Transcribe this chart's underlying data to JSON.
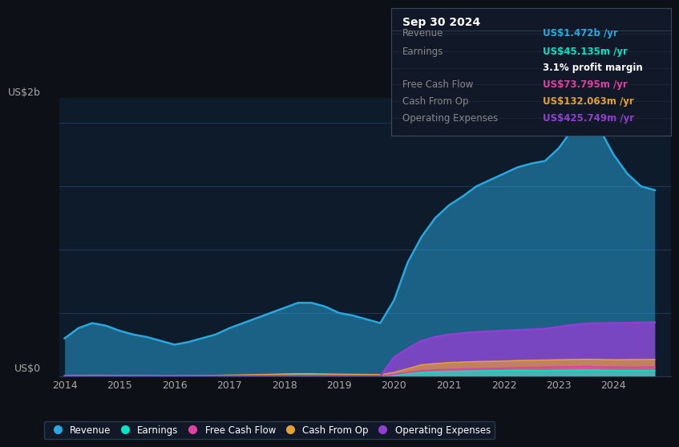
{
  "bg_color": "#0d1117",
  "plot_bg_color": "#0d1b2a",
  "grid_color": "#1e3050",
  "title_box_color": "#111827",
  "years": [
    2014,
    2014.25,
    2014.5,
    2014.75,
    2015,
    2015.25,
    2015.5,
    2015.75,
    2016,
    2016.25,
    2016.5,
    2016.75,
    2017,
    2017.25,
    2017.5,
    2017.75,
    2018,
    2018.25,
    2018.5,
    2018.75,
    2019,
    2019.25,
    2019.5,
    2019.75,
    2020,
    2020.25,
    2020.5,
    2020.75,
    2021,
    2021.25,
    2021.5,
    2021.75,
    2022,
    2022.25,
    2022.5,
    2022.75,
    2023,
    2023.25,
    2023.5,
    2023.75,
    2024,
    2024.25,
    2024.5,
    2024.75
  ],
  "revenue": [
    0.3,
    0.38,
    0.42,
    0.4,
    0.36,
    0.33,
    0.31,
    0.28,
    0.25,
    0.27,
    0.3,
    0.33,
    0.38,
    0.42,
    0.46,
    0.5,
    0.54,
    0.58,
    0.58,
    0.55,
    0.5,
    0.48,
    0.45,
    0.42,
    0.6,
    0.9,
    1.1,
    1.25,
    1.35,
    1.42,
    1.5,
    1.55,
    1.6,
    1.65,
    1.68,
    1.7,
    1.8,
    1.95,
    2.05,
    1.95,
    1.75,
    1.6,
    1.5,
    1.47
  ],
  "earnings": [
    0.005,
    0.006,
    0.007,
    0.006,
    0.005,
    0.004,
    0.003,
    0.003,
    0.002,
    0.003,
    0.004,
    0.005,
    0.006,
    0.007,
    0.009,
    0.01,
    0.012,
    0.013,
    0.012,
    0.01,
    0.008,
    0.007,
    0.006,
    0.005,
    0.01,
    0.02,
    0.03,
    0.035,
    0.038,
    0.04,
    0.042,
    0.044,
    0.046,
    0.047,
    0.046,
    0.045,
    0.047,
    0.048,
    0.05,
    0.048,
    0.046,
    0.045,
    0.044,
    0.045
  ],
  "free_cash_flow": [
    0.002,
    0.003,
    0.003,
    0.003,
    0.002,
    0.002,
    0.002,
    0.001,
    0.001,
    0.002,
    0.002,
    0.003,
    0.003,
    0.004,
    0.005,
    0.005,
    0.006,
    0.007,
    0.007,
    0.006,
    0.005,
    0.005,
    0.004,
    0.004,
    0.015,
    0.03,
    0.045,
    0.05,
    0.055,
    0.058,
    0.06,
    0.062,
    0.065,
    0.068,
    0.07,
    0.072,
    0.074,
    0.076,
    0.078,
    0.075,
    0.073,
    0.072,
    0.073,
    0.074
  ],
  "cash_from_op": [
    0.004,
    0.006,
    0.007,
    0.007,
    0.006,
    0.005,
    0.005,
    0.004,
    0.004,
    0.005,
    0.006,
    0.007,
    0.009,
    0.011,
    0.013,
    0.015,
    0.018,
    0.02,
    0.02,
    0.018,
    0.016,
    0.015,
    0.014,
    0.013,
    0.03,
    0.06,
    0.09,
    0.1,
    0.108,
    0.112,
    0.116,
    0.118,
    0.12,
    0.124,
    0.126,
    0.128,
    0.13,
    0.132,
    0.134,
    0.132,
    0.13,
    0.131,
    0.132,
    0.132
  ],
  "operating_expenses": [
    0.001,
    0.001,
    0.001,
    0.001,
    0.001,
    0.001,
    0.001,
    0.001,
    0.001,
    0.001,
    0.001,
    0.001,
    0.001,
    0.001,
    0.001,
    0.001,
    0.001,
    0.001,
    0.001,
    0.001,
    0.001,
    0.001,
    0.001,
    0.001,
    0.15,
    0.22,
    0.28,
    0.31,
    0.33,
    0.34,
    0.35,
    0.355,
    0.36,
    0.365,
    0.37,
    0.375,
    0.39,
    0.405,
    0.415,
    0.42,
    0.42,
    0.422,
    0.424,
    0.426
  ],
  "revenue_color": "#29a8e0",
  "earnings_color": "#00e5c8",
  "free_cash_flow_color": "#e040a0",
  "cash_from_op_color": "#e8a030",
  "operating_expenses_color": "#9040d0",
  "ylabel": "US$2b",
  "y0label": "US$0",
  "xticks": [
    2014,
    2015,
    2016,
    2017,
    2018,
    2019,
    2020,
    2021,
    2022,
    2023,
    2024
  ],
  "ylim": [
    0,
    2.2
  ],
  "info_box": {
    "date": "Sep 30 2024",
    "revenue_label": "Revenue",
    "revenue_value": "US$1.472b /yr",
    "revenue_color": "#29a8e0",
    "earnings_label": "Earnings",
    "earnings_value": "US$45.135m /yr",
    "earnings_color": "#00e5c8",
    "margin_text": "3.1% profit margin",
    "margin_color": "#ffffff",
    "fcf_label": "Free Cash Flow",
    "fcf_value": "US$73.795m /yr",
    "fcf_color": "#e040a0",
    "cfo_label": "Cash From Op",
    "cfo_value": "US$132.063m /yr",
    "cfo_color": "#e8a030",
    "opex_label": "Operating Expenses",
    "opex_value": "US$425.749m /yr",
    "opex_color": "#9040d0"
  }
}
